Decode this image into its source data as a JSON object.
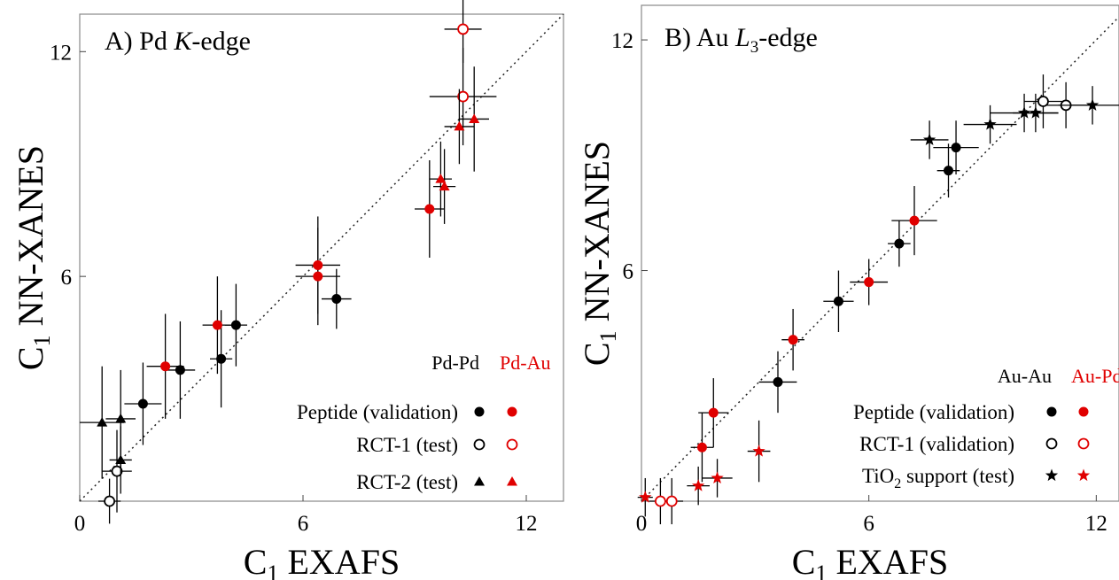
{
  "chart_data": [
    {
      "type": "scatter",
      "panel_label": "A)",
      "title_main": "Pd",
      "title_italic": "K",
      "title_suffix": "-edge",
      "x_axis": {
        "sym": "C",
        "sub": "1",
        "rest": " EXAFS",
        "range": [
          0,
          13
        ],
        "ticks": [
          0,
          6,
          12
        ]
      },
      "y_axis": {
        "sym": "C",
        "sub": "1",
        "rest": " NN-XANES",
        "range": [
          0,
          13
        ],
        "ticks": [
          6,
          12
        ]
      },
      "diagonal": true,
      "legend": {
        "placement": "bottom-right",
        "col_black": "Pd-Pd",
        "col_red": "Pd-Au",
        "rows": [
          {
            "text": "Peptide (validation)",
            "sub": "",
            "text2": "",
            "marker": "circle-filled"
          },
          {
            "text": "RCT-1 (test)",
            "sub": "",
            "text2": "",
            "marker": "circle-open"
          },
          {
            "text": "RCT-2 (test)",
            "sub": "",
            "text2": "",
            "marker": "triangle"
          }
        ]
      },
      "series": [
        {
          "pair": "Pd-Pd",
          "dataset": "Peptide (validation)",
          "color": "#000000",
          "marker": "circle-filled",
          "points": [
            [
              1.7,
              2.6,
              0.5,
              1.1
            ],
            [
              2.7,
              3.5,
              0.4,
              1.3
            ],
            [
              3.8,
              3.8,
              0.3,
              1.3
            ],
            [
              4.2,
              4.7,
              0.3,
              1.1
            ],
            [
              6.9,
              5.4,
              0.4,
              0.8
            ]
          ]
        },
        {
          "pair": "Pd-Au",
          "dataset": "Peptide (validation)",
          "color": "#e00000",
          "marker": "circle-filled",
          "points": [
            [
              2.3,
              3.6,
              0.5,
              1.4
            ],
            [
              3.7,
              4.7,
              0.4,
              1.3
            ],
            [
              6.4,
              6.3,
              0.6,
              1.3
            ],
            [
              6.4,
              6.0,
              0.6,
              1.3
            ],
            [
              9.4,
              7.8,
              0.4,
              1.3
            ]
          ]
        },
        {
          "pair": "Pd-Pd",
          "dataset": "RCT-1 (test)",
          "color": "#000000",
          "marker": "circle-open",
          "points": [
            [
              1.0,
              0.8,
              0.4,
              1.1
            ],
            [
              0.8,
              0.0,
              0.3,
              0.6
            ]
          ]
        },
        {
          "pair": "Pd-Au",
          "dataset": "RCT-1 (test)",
          "color": "#e00000",
          "marker": "circle-open",
          "points": [
            [
              10.3,
              12.6,
              0.5,
              0.9
            ],
            [
              10.3,
              10.8,
              0.9,
              1.3
            ]
          ]
        },
        {
          "pair": "Pd-Pd",
          "dataset": "RCT-2 (test)",
          "color": "#000000",
          "marker": "triangle",
          "points": [
            [
              0.6,
              2.1,
              0.6,
              1.5
            ],
            [
              1.1,
              2.2,
              0.4,
              1.3
            ],
            [
              1.1,
              1.1,
              0.3,
              0.9
            ]
          ]
        },
        {
          "pair": "Pd-Au",
          "dataset": "RCT-2 (test)",
          "color": "#e00000",
          "marker": "triangle",
          "points": [
            [
              9.7,
              8.6,
              0.3,
              1.0
            ],
            [
              9.8,
              8.4,
              0.3,
              1.0
            ],
            [
              10.2,
              10.0,
              0.4,
              1.0
            ],
            [
              10.6,
              10.2,
              0.4,
              1.4
            ]
          ]
        }
      ]
    },
    {
      "type": "scatter",
      "panel_label": "B)",
      "title_main": "Au",
      "title_italic": "L",
      "title_sub": "3",
      "title_suffix": "-edge",
      "x_axis": {
        "sym": "C",
        "sub": "1",
        "rest": " EXAFS",
        "range": [
          0,
          12.6
        ],
        "ticks": [
          0,
          6,
          12
        ]
      },
      "y_axis": {
        "sym": "C",
        "sub": "1",
        "rest": " NN-XANES",
        "range": [
          0,
          12.9
        ],
        "ticks": [
          6,
          12
        ]
      },
      "diagonal": true,
      "legend": {
        "placement": "bottom-right",
        "col_black": "Au-Au",
        "col_red": "Au-Pd",
        "rows": [
          {
            "text": "Peptide (validation)",
            "sub": "",
            "text2": "",
            "marker": "circle-filled"
          },
          {
            "text": "RCT-1 (validation)",
            "sub": "",
            "text2": "",
            "marker": "circle-open"
          },
          {
            "text": "TiO",
            "sub": "2",
            "text2": " support (test)",
            "marker": "star"
          }
        ]
      },
      "series": [
        {
          "pair": "Au-Au",
          "dataset": "Peptide (validation)",
          "color": "#000000",
          "marker": "circle-filled",
          "points": [
            [
              3.6,
              3.1,
              0.5,
              0.8
            ],
            [
              5.2,
              5.2,
              0.4,
              0.8
            ],
            [
              6.8,
              6.7,
              0.3,
              0.6
            ],
            [
              8.1,
              8.6,
              0.3,
              0.7
            ],
            [
              8.3,
              9.2,
              0.6,
              0.7
            ]
          ]
        },
        {
          "pair": "Au-Pd",
          "dataset": "Peptide (validation)",
          "color": "#e00000",
          "marker": "circle-filled",
          "points": [
            [
              1.9,
              2.3,
              0.4,
              0.9
            ],
            [
              1.6,
              1.4,
              0.3,
              0.9
            ],
            [
              4.0,
              4.2,
              0.3,
              0.8
            ],
            [
              6.0,
              5.7,
              0.5,
              0.6
            ],
            [
              7.2,
              7.3,
              0.6,
              0.9
            ]
          ]
        },
        {
          "pair": "Au-Au",
          "dataset": "RCT-1 (validation)",
          "color": "#000000",
          "marker": "circle-open",
          "points": [
            [
              10.6,
              10.4,
              0.5,
              0.7
            ],
            [
              11.2,
              10.3,
              0.6,
              0.6
            ]
          ]
        },
        {
          "pair": "Au-Pd",
          "dataset": "RCT-1 (validation)",
          "color": "#e00000",
          "marker": "circle-open",
          "points": [
            [
              0.5,
              0.0,
              0.3,
              0.6
            ],
            [
              0.8,
              0.0,
              0.3,
              0.6
            ]
          ]
        },
        {
          "pair": "Au-Au",
          "dataset": "TiO2 support (test)",
          "color": "#000000",
          "marker": "star",
          "points": [
            [
              7.6,
              9.4,
              0.5,
              0.5
            ],
            [
              9.2,
              9.8,
              0.7,
              0.5
            ],
            [
              10.1,
              10.1,
              0.9,
              0.5
            ],
            [
              10.4,
              10.1,
              0.6,
              0.5
            ],
            [
              11.9,
              10.3,
              0.9,
              0.5
            ]
          ]
        },
        {
          "pair": "Au-Pd",
          "dataset": "TiO2 support (test)",
          "color": "#e00000",
          "marker": "star",
          "points": [
            [
              0.1,
              0.1,
              0.2,
              0.5
            ],
            [
              1.5,
              0.4,
              0.3,
              0.5
            ],
            [
              2.0,
              0.6,
              0.4,
              0.5
            ],
            [
              3.1,
              1.3,
              0.3,
              0.8
            ]
          ]
        }
      ]
    }
  ]
}
